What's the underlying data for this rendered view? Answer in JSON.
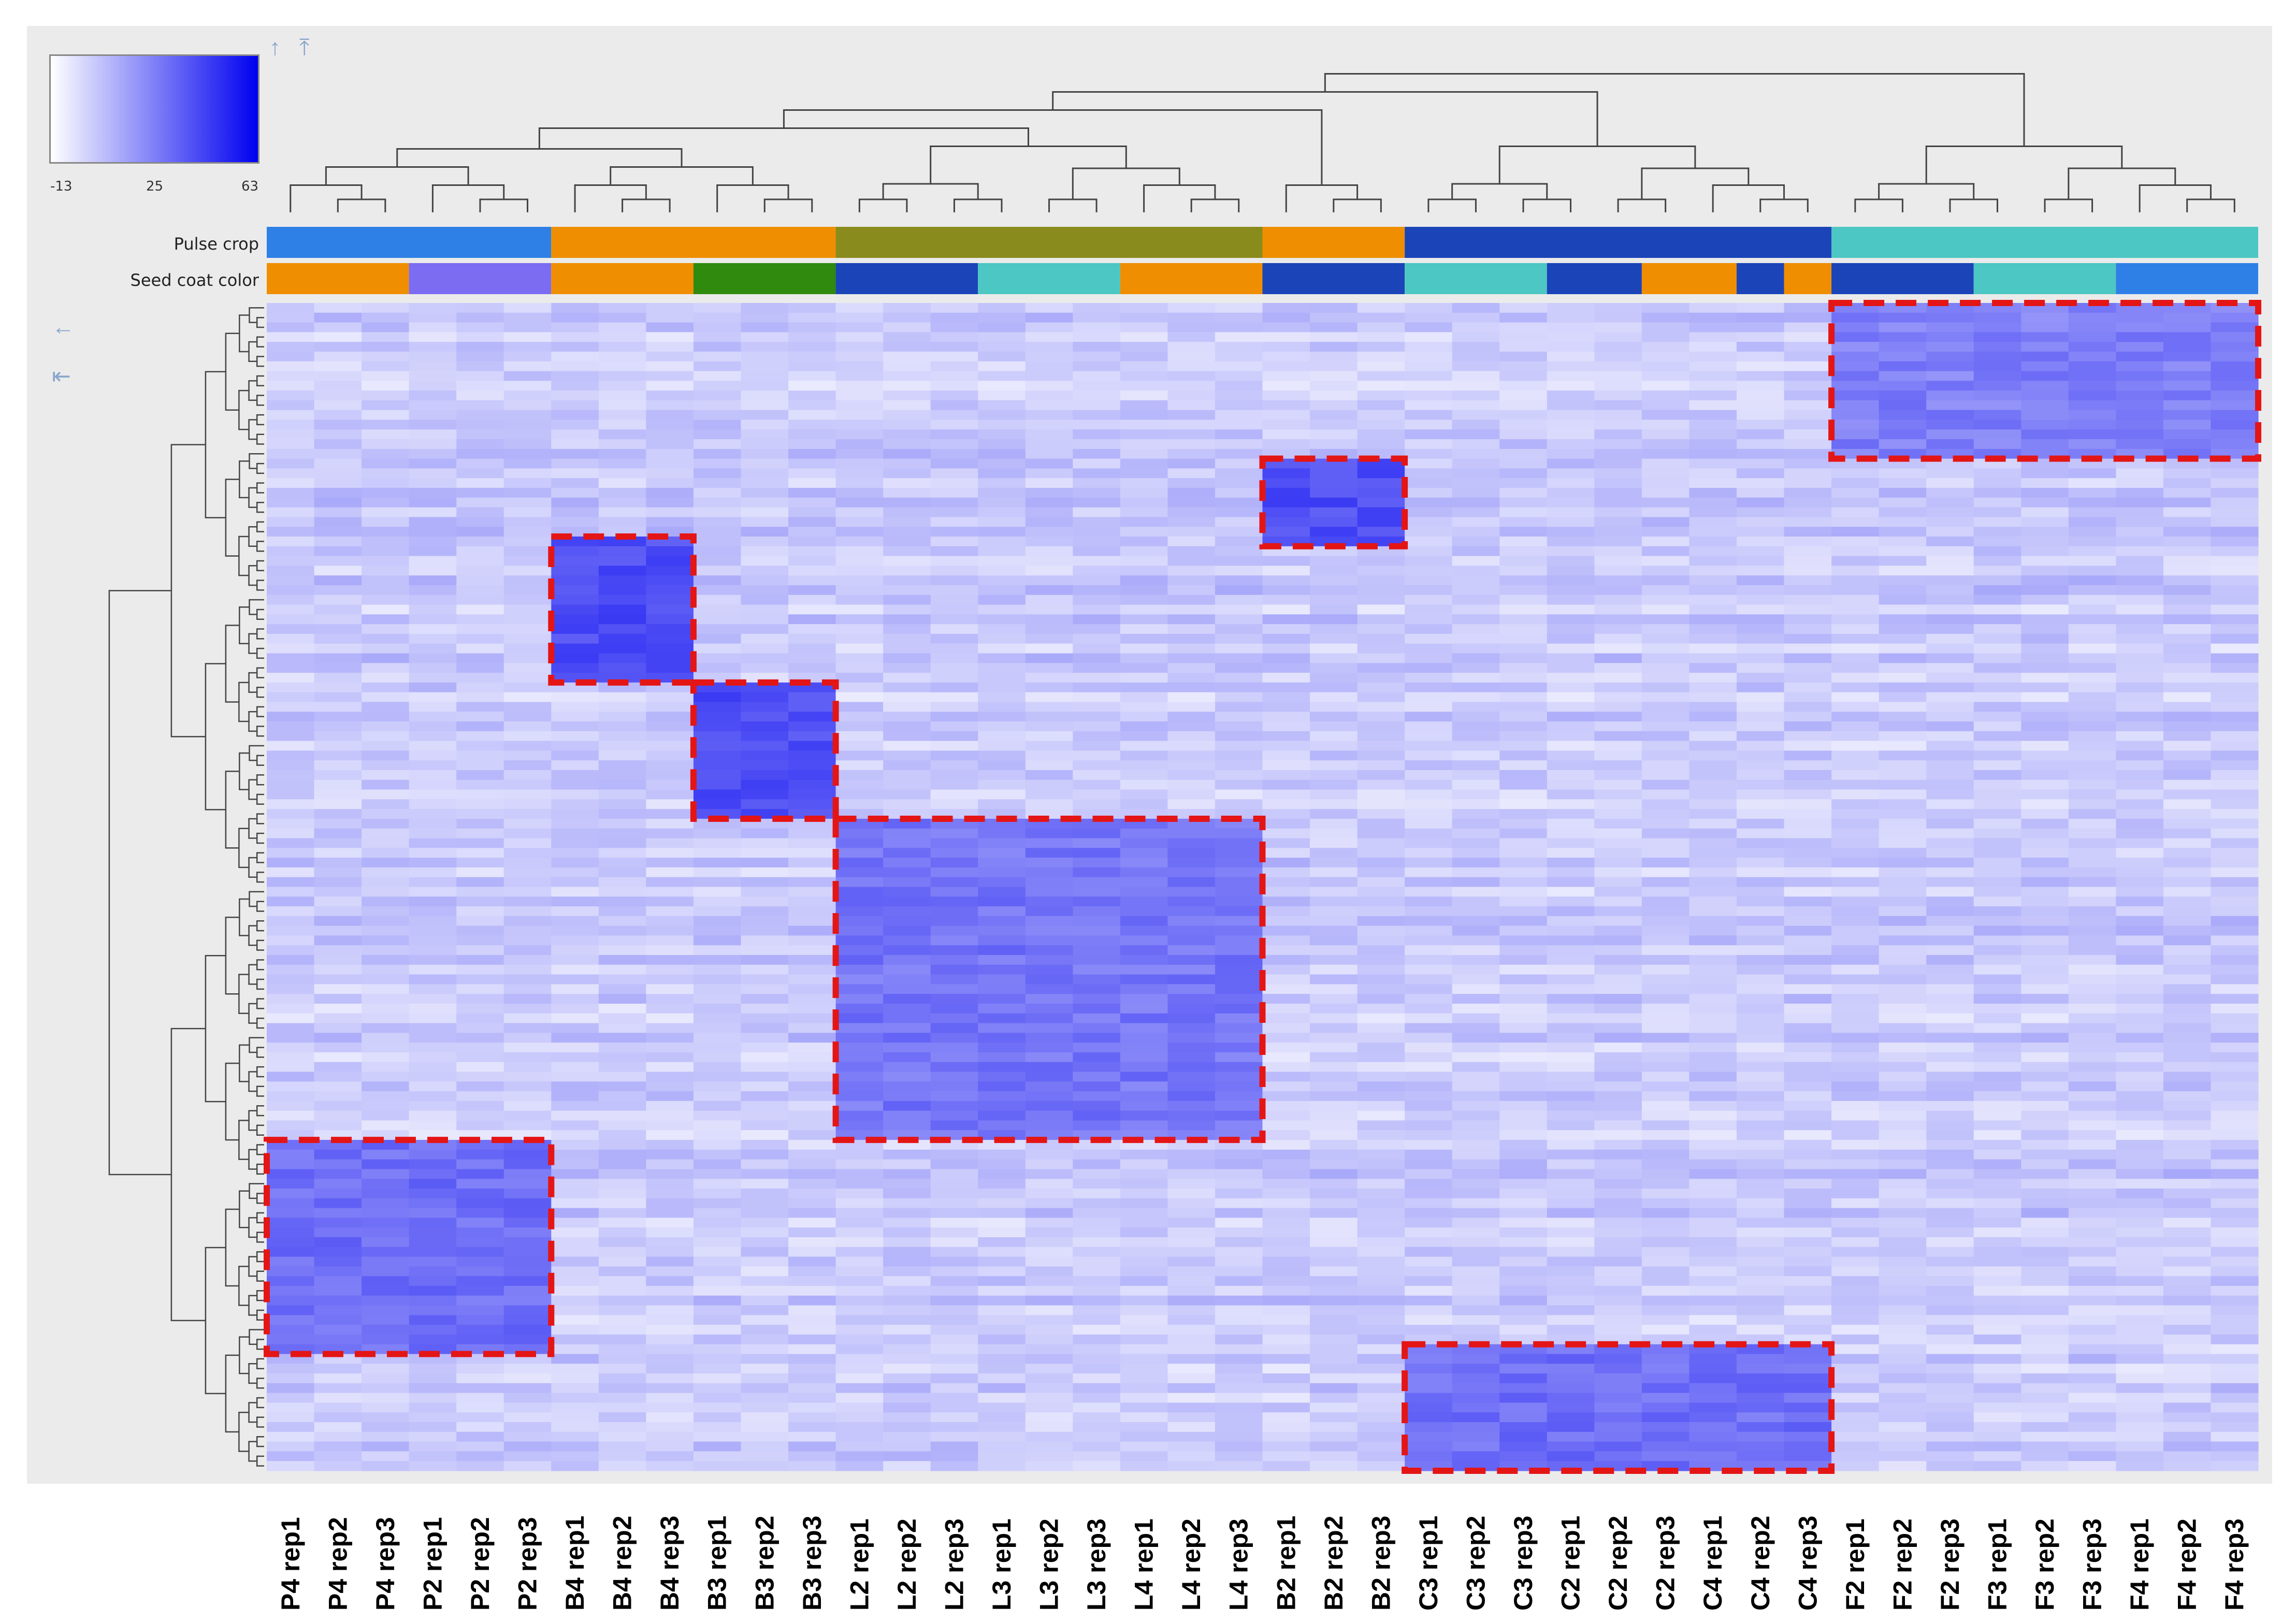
{
  "legend": {
    "min_label": "-13",
    "mid_label": "25",
    "max_label": "63",
    "min_color": "#ffffff",
    "max_color": "#0000f0"
  },
  "annotation_tracks": [
    {
      "label": "Pulse crop",
      "segments": [
        {
          "from": 0,
          "to": 6,
          "color": "#2f80e6"
        },
        {
          "from": 6,
          "to": 12,
          "color": "#ef8e00"
        },
        {
          "from": 12,
          "to": 21,
          "color": "#8a8b1d"
        },
        {
          "from": 21,
          "to": 24,
          "color": "#ef8e00"
        },
        {
          "from": 24,
          "to": 33,
          "color": "#1a44b8"
        },
        {
          "from": 33,
          "to": 42,
          "color": "#4cc7c3"
        }
      ]
    },
    {
      "label": "Seed coat color",
      "segments": [
        {
          "from": 0,
          "to": 3,
          "color": "#ef8e00"
        },
        {
          "from": 3,
          "to": 6,
          "color": "#7b6cf2"
        },
        {
          "from": 6,
          "to": 9,
          "color": "#ef8e00"
        },
        {
          "from": 9,
          "to": 12,
          "color": "#2f8a0d"
        },
        {
          "from": 12,
          "to": 15,
          "color": "#1a44b8"
        },
        {
          "from": 15,
          "to": 18,
          "color": "#4cc7c3"
        },
        {
          "from": 18,
          "to": 21,
          "color": "#ef8e00"
        },
        {
          "from": 21,
          "to": 24,
          "color": "#1a44b8"
        },
        {
          "from": 24,
          "to": 27,
          "color": "#4cc7c3"
        },
        {
          "from": 27,
          "to": 29,
          "color": "#1a44b8"
        },
        {
          "from": 29,
          "to": 31,
          "color": "#ef8e00"
        },
        {
          "from": 31,
          "to": 32,
          "color": "#1a44b8"
        },
        {
          "from": 32,
          "to": 33,
          "color": "#ef8e00"
        },
        {
          "from": 33,
          "to": 36,
          "color": "#1a44b8"
        },
        {
          "from": 36,
          "to": 39,
          "color": "#4cc7c3"
        },
        {
          "from": 39,
          "to": 42,
          "color": "#2f80e6"
        }
      ]
    }
  ],
  "chart_data": {
    "type": "heatmap",
    "title": "",
    "value_range": [
      -13,
      63
    ],
    "columns": [
      "P4 rep1",
      "P4 rep2",
      "P4 rep3",
      "P2 rep1",
      "P2 rep2",
      "P2 rep3",
      "B4 rep1",
      "B4 rep2",
      "B4 rep3",
      "B3 rep1",
      "B3 rep2",
      "B3 rep3",
      "L2 rep1",
      "L2 rep2",
      "L2 rep3",
      "L3 rep1",
      "L3 rep2",
      "L3 rep3",
      "L4 rep1",
      "L4 rep2",
      "L4 rep3",
      "B2 rep1",
      "B2 rep2",
      "B2 rep3",
      "C3 rep1",
      "C3 rep2",
      "C3 rep3",
      "C2 rep1",
      "C2 rep2",
      "C2 rep3",
      "C4 rep1",
      "C4 rep2",
      "C4 rep3",
      "F2 rep1",
      "F2 rep2",
      "F2 rep3",
      "F3 rep1",
      "F3 rep2",
      "F3 rep3",
      "F4 rep1",
      "F4 rep2",
      "F4 rep3"
    ],
    "row_count": 120,
    "background_value": 3,
    "clusters": [
      {
        "name": "F",
        "rows": [
          0,
          16
        ],
        "cols": [
          33,
          42
        ],
        "value": 25
      },
      {
        "name": "B2",
        "rows": [
          16,
          25
        ],
        "cols": [
          21,
          24
        ],
        "value": 40
      },
      {
        "name": "B4",
        "rows": [
          24,
          39
        ],
        "cols": [
          6,
          9
        ],
        "value": 40
      },
      {
        "name": "B3",
        "rows": [
          39,
          53
        ],
        "cols": [
          9,
          12
        ],
        "value": 40
      },
      {
        "name": "L",
        "rows": [
          53,
          86
        ],
        "cols": [
          12,
          21
        ],
        "value": 28
      },
      {
        "name": "P",
        "rows": [
          86,
          108
        ],
        "cols": [
          0,
          6
        ],
        "value": 30
      },
      {
        "name": "C",
        "rows": [
          107,
          120
        ],
        "cols": [
          24,
          33
        ],
        "value": 30
      }
    ]
  }
}
